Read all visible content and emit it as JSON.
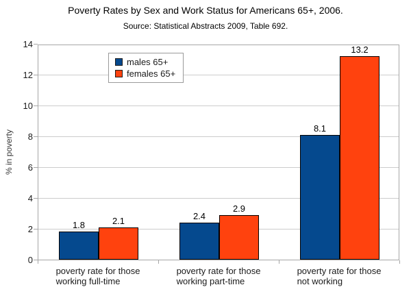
{
  "chart_data": {
    "type": "bar",
    "title": "Poverty Rates by Sex and Work Status for Americans 65+, 2006.",
    "subtitle": "Source: Statistical Abstracts 2009, Table 692.",
    "ylabel": "% in poverty",
    "xlabel": "",
    "categories": [
      "poverty rate for those working full-time",
      "poverty rate for those working part-time",
      "poverty rate for those not working"
    ],
    "category_label_lines": [
      [
        "poverty rate for those",
        "working full-time"
      ],
      [
        "poverty rate for those",
        "working part-time"
      ],
      [
        "poverty rate for those",
        "not working"
      ]
    ],
    "series": [
      {
        "name": "males 65+",
        "color": "#05498e",
        "values": [
          1.8,
          2.4,
          8.1
        ]
      },
      {
        "name": "females 65+",
        "color": "#ff420e",
        "values": [
          2.1,
          2.9,
          13.2
        ]
      }
    ],
    "ylim": [
      0,
      14
    ],
    "ytick_step": 2,
    "grid": true,
    "legend_position": "top-left-inside",
    "value_labels_shown": true,
    "frame_color": "#a6a6a6",
    "gridline_color": "#cccccc"
  }
}
